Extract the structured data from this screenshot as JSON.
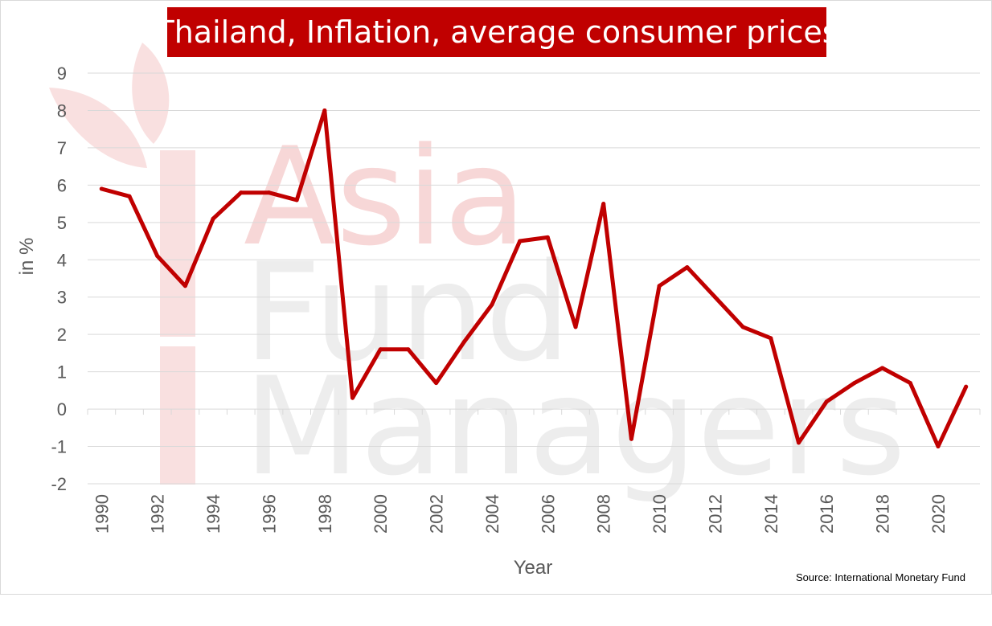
{
  "colors": {
    "accent": "#c00000",
    "grid": "#d9d9d9",
    "axis_text": "#595959",
    "watermark_text": "#e6e6e6",
    "watermark_accent": "#f4c7c7"
  },
  "watermark": {
    "lines": [
      "Asia",
      "Fund",
      "Managers"
    ],
    "icon": "asia-fund-managers-logo"
  },
  "chart_data": {
    "type": "line",
    "title": "Thailand, Inflation, average consumer prices",
    "xlabel": "Year",
    "ylabel": "in %",
    "ylim": [
      -2,
      9
    ],
    "xlim": [
      1990,
      2021
    ],
    "yticks": [
      -2,
      -1,
      0,
      1,
      2,
      3,
      4,
      5,
      6,
      7,
      8,
      9
    ],
    "xticks": [
      1990,
      1992,
      1994,
      1996,
      1998,
      2000,
      2002,
      2004,
      2006,
      2008,
      2010,
      2012,
      2014,
      2016,
      2018,
      2020
    ],
    "grid": true,
    "legend": "none",
    "x": [
      1990,
      1991,
      1992,
      1993,
      1994,
      1995,
      1996,
      1997,
      1998,
      1999,
      2000,
      2001,
      2002,
      2003,
      2004,
      2005,
      2006,
      2007,
      2008,
      2009,
      2010,
      2011,
      2012,
      2013,
      2014,
      2015,
      2016,
      2017,
      2018,
      2019,
      2020,
      2021
    ],
    "series": [
      {
        "values": [
          5.9,
          5.7,
          4.1,
          3.3,
          5.1,
          5.8,
          5.8,
          5.6,
          8.0,
          0.3,
          1.6,
          1.6,
          0.7,
          1.8,
          2.8,
          4.5,
          4.6,
          2.2,
          5.5,
          -0.8,
          3.3,
          3.8,
          3.0,
          2.2,
          1.9,
          -0.9,
          0.2,
          0.7,
          1.1,
          0.7,
          -1.0,
          0.6
        ]
      }
    ],
    "source": "Source: International Monetary Fund"
  }
}
